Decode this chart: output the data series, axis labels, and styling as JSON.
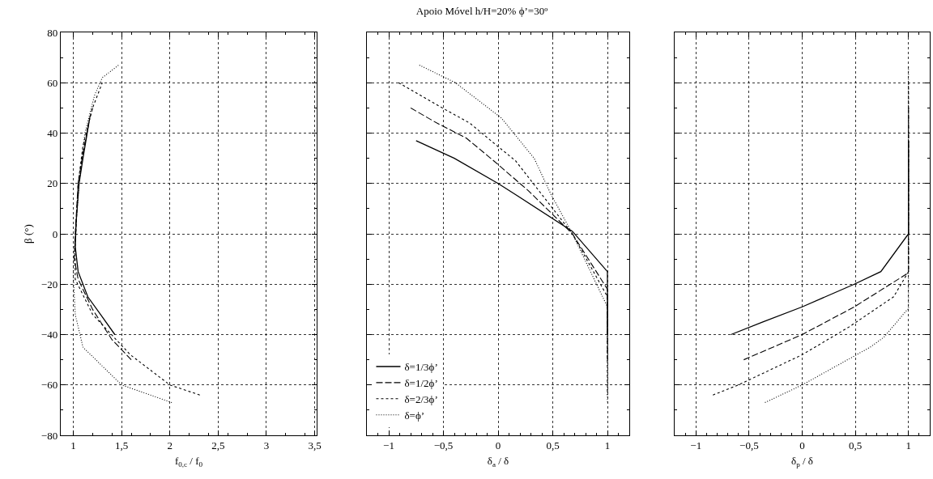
{
  "chart_data": [
    {
      "type": "line",
      "xlabel": "f$_{0,c}$ / f$_{0}$",
      "ylabel": "β (°)",
      "xlim": [
        0.87,
        3.52
      ],
      "xticks": [
        1,
        {
          "value": 1.5,
          "label": "1,5"
        },
        2,
        {
          "value": 2.5,
          "label": "2,5"
        },
        3,
        {
          "value": 3.5,
          "label": "3,5"
        }
      ],
      "ylim": [
        -80,
        80
      ],
      "yticks": [
        {
          "value": -80,
          "label": "−80"
        },
        {
          "value": -60,
          "label": "−60"
        },
        {
          "value": -40,
          "label": "−40"
        },
        {
          "value": -20,
          "label": "−20"
        },
        0,
        20,
        40,
        60,
        80
      ],
      "grid": true,
      "legend": false,
      "series": [
        {
          "color": "#000000",
          "line_style": "solid",
          "x": [
            1.43,
            1.3,
            1.15,
            1.05,
            1.02,
            1.03,
            1.06,
            1.1,
            1.17
          ],
          "values": [
            -40,
            -33,
            -25,
            -15,
            -5,
            5,
            20,
            30,
            46
          ]
        },
        {
          "color": "#000000",
          "line_style": "dashed",
          "x": [
            1.6,
            1.4,
            1.2,
            1.05,
            1.01,
            1.02,
            1.05,
            1.1,
            1.17,
            1.2
          ],
          "values": [
            -50,
            -42,
            -30,
            -18,
            -10,
            0,
            20,
            32,
            46,
            50
          ]
        },
        {
          "color": "#000000",
          "line_style": "dashed",
          "x": [
            2.31,
            2,
            1.59,
            1.2,
            1.02,
            1.02,
            1.05,
            1.1,
            1.2,
            1.3
          ],
          "values": [
            -64,
            -60,
            -48,
            -32,
            -18,
            -5,
            20,
            35,
            50,
            60
          ]
        },
        {
          "color": "#000000",
          "line_style": "dotted",
          "x": [
            2.02,
            1.5,
            1.1,
            1.02,
            1,
            1.02,
            1.06,
            1.12,
            1.22,
            1.3,
            1.47
          ],
          "values": [
            -67,
            -60,
            -45,
            -32,
            -16,
            0,
            20,
            40,
            55,
            62,
            67
          ]
        }
      ]
    },
    {
      "type": "line",
      "title": "Apoio Móvel h/H=20% ϕ’=30º",
      "xlabel": "δ$_{a}$ / δ",
      "xlim": [
        -1.2,
        1.2
      ],
      "xticks": [
        {
          "value": -1,
          "label": "−1"
        },
        {
          "value": -0.5,
          "label": "−0,5"
        },
        0,
        {
          "value": 0.5,
          "label": "0,5"
        },
        1
      ],
      "ylim": [
        -80,
        80
      ],
      "yticks": [
        -80,
        -60,
        -40,
        -20,
        0,
        20,
        40,
        60,
        80
      ],
      "tick_labels": "x",
      "grid": true,
      "legend": "bottom left",
      "series": [
        {
          "name": "δ=1/3ϕ’",
          "color": "#000000",
          "line_style": "solid",
          "x": [
            -0.75,
            -0.4,
            0,
            0.18,
            0.68,
            1,
            1
          ],
          "values": [
            37,
            30,
            20,
            15,
            1,
            -15,
            -40
          ]
        },
        {
          "name": "δ=1/2ϕ’",
          "color": "#000000",
          "line_style": "dashed",
          "x": [
            -0.8,
            -0.56,
            -0.29,
            -0.04,
            0.28,
            0.68,
            1,
            1
          ],
          "values": [
            50,
            44,
            38,
            29,
            17,
            0,
            -22,
            -50
          ]
        },
        {
          "name": "δ=2/3ϕ’",
          "color": "#000000",
          "line_style": "dashed",
          "x": [
            -0.91,
            -0.51,
            -0.26,
            -0.01,
            0.16,
            0.68,
            1,
            1
          ],
          "values": [
            60,
            50,
            44,
            35,
            29,
            0,
            -25,
            -64
          ]
        },
        {
          "name": "δ=ϕ’",
          "color": "#000000",
          "line_style": "dotted",
          "x": [
            -0.72,
            -0.39,
            0.03,
            0.33,
            0.48,
            0.68,
            1,
            1
          ],
          "values": [
            67,
            60,
            46,
            30,
            16,
            0,
            -29,
            -67
          ]
        }
      ]
    },
    {
      "type": "line",
      "xlabel": "δ$_{p}$ / δ",
      "xlim": [
        -1.2,
        1.2
      ],
      "xticks": [
        {
          "value": -1,
          "label": "−1"
        },
        {
          "value": -0.5,
          "label": "−0,5"
        },
        0,
        {
          "value": 0.5,
          "label": "0,5"
        },
        1
      ],
      "ylim": [
        -80,
        80
      ],
      "yticks": [
        -80,
        -60,
        -40,
        -20,
        0,
        20,
        40,
        60,
        80
      ],
      "tick_labels": "x",
      "grid": true,
      "legend": false,
      "series": [
        {
          "color": "#000000",
          "line_style": "solid",
          "x": [
            -0.67,
            -0.37,
            0,
            0.49,
            0.74,
            1,
            1
          ],
          "values": [
            -40,
            -35,
            -29,
            -20,
            -15,
            0,
            37
          ]
        },
        {
          "color": "#000000",
          "line_style": "dashed",
          "x": [
            -0.55,
            0,
            0.49,
            0.98,
            1,
            1
          ],
          "values": [
            -50,
            -40,
            -29,
            -16,
            -15,
            50
          ]
        },
        {
          "color": "#000000",
          "line_style": "dashed",
          "x": [
            -0.84,
            -0.6,
            0,
            0.44,
            0.86,
            1,
            1
          ],
          "values": [
            -64,
            -60,
            -48,
            -37,
            -25,
            -15,
            60
          ]
        },
        {
          "color": "#000000",
          "line_style": "dotted",
          "x": [
            -0.35,
            0,
            0.64,
            0.77,
            0.99,
            1,
            1
          ],
          "values": [
            -67,
            -60,
            -45,
            -41,
            -30,
            -30,
            67
          ]
        }
      ]
    }
  ]
}
